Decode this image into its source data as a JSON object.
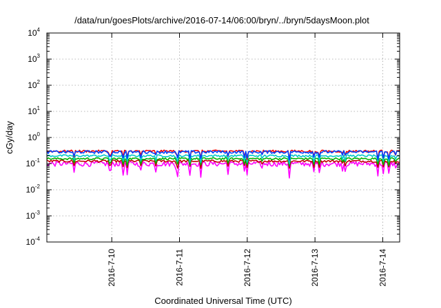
{
  "chart_data": {
    "type": "line",
    "title": "/data/run/goesPlots/archive/2016-07-14/06:00/bryn/../bryn/5daysMoon.plot",
    "xlabel": "Coordinated Universal Time (UTC)",
    "ylabel": "cGy/day",
    "yscale": "log",
    "ylim": [
      0.0001,
      10000
    ],
    "yticks": [
      {
        "base": "10",
        "exp": "-4",
        "value": 0.0001
      },
      {
        "base": "10",
        "exp": "-3",
        "value": 0.001
      },
      {
        "base": "10",
        "exp": "-2",
        "value": 0.01
      },
      {
        "base": "10",
        "exp": "-1",
        "value": 0.1
      },
      {
        "base": "10",
        "exp": "0",
        "value": 1
      },
      {
        "base": "10",
        "exp": "1",
        "value": 10
      },
      {
        "base": "10",
        "exp": "2",
        "value": 100
      },
      {
        "base": "10",
        "exp": "3",
        "value": 1000
      },
      {
        "base": "10",
        "exp": "4",
        "value": 10000
      }
    ],
    "xlim": [
      "2016-07-09 01:00",
      "2016-07-14 06:00"
    ],
    "xticks": [
      {
        "label": "2016-7-10",
        "value": "2016-07-10 00:00"
      },
      {
        "label": "2016-7-11",
        "value": "2016-07-11 00:00"
      },
      {
        "label": "2016-7-12",
        "value": "2016-07-12 00:00"
      },
      {
        "label": "2016-7-13",
        "value": "2016-07-13 00:00"
      },
      {
        "label": "2016-7-14",
        "value": "2016-07-14 00:00"
      }
    ],
    "grid": true,
    "legend": "none",
    "series_style": [
      {
        "color": "#ff00ff",
        "level": 0.1,
        "noise": 0.45
      },
      {
        "color": "#c00000",
        "level": 0.125,
        "noise": 0.2
      },
      {
        "color": "#00b000",
        "level": 0.155,
        "noise": 0.18
      },
      {
        "color": "#00c8c8",
        "level": 0.2,
        "noise": 0.18
      },
      {
        "color": "#ff0000",
        "level": 0.3,
        "noise": 0.2
      },
      {
        "color": "#0040ff",
        "level": 0.28,
        "noise": 0.25
      }
    ]
  }
}
